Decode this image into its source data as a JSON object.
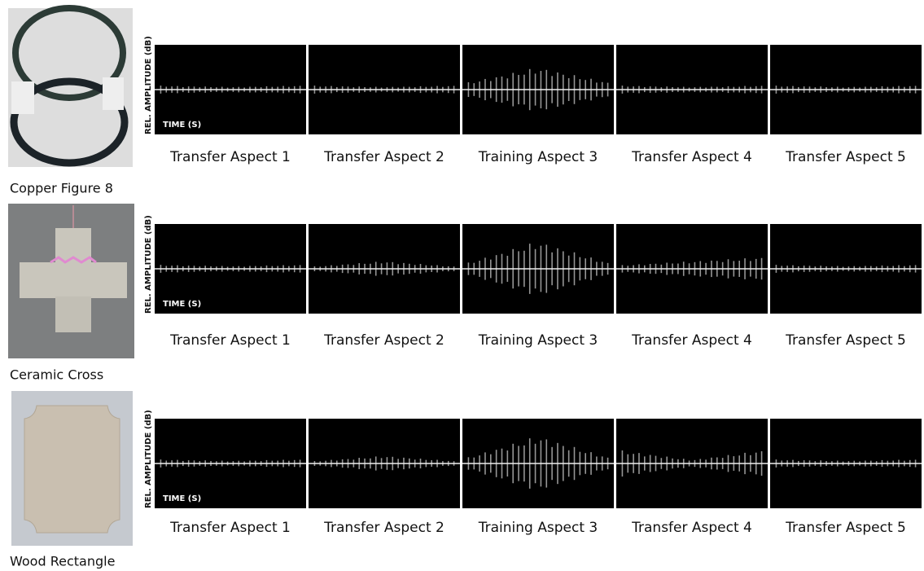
{
  "rows": [
    {
      "object_label": "Copper Figure 8",
      "y_axis_label": "REL. AMPLITUDE (dB)",
      "x_axis_label": "TIME (S)",
      "panels": [
        "Transfer Aspect 1",
        "Transfer Aspect 2",
        "Training Aspect 3",
        "Transfer Aspect 4",
        "Transfer Aspect 5"
      ]
    },
    {
      "object_label": "Ceramic Cross",
      "y_axis_label": "REL. AMPLITUDE (dB)",
      "x_axis_label": "TIME (S)",
      "panels": [
        "Transfer Aspect 1",
        "Transfer Aspect 2",
        "Training Aspect 3",
        "Transfer Aspect 4",
        "Transfer Aspect 5"
      ]
    },
    {
      "object_label": "Wood Rectangle",
      "y_axis_label": "REL. AMPLITUDE (dB)",
      "x_axis_label": "TIME (S)",
      "panels": [
        "Transfer Aspect 1",
        "Transfer Aspect 2",
        "Training Aspect 3",
        "Transfer Aspect 4",
        "Transfer Aspect 5"
      ]
    }
  ]
}
